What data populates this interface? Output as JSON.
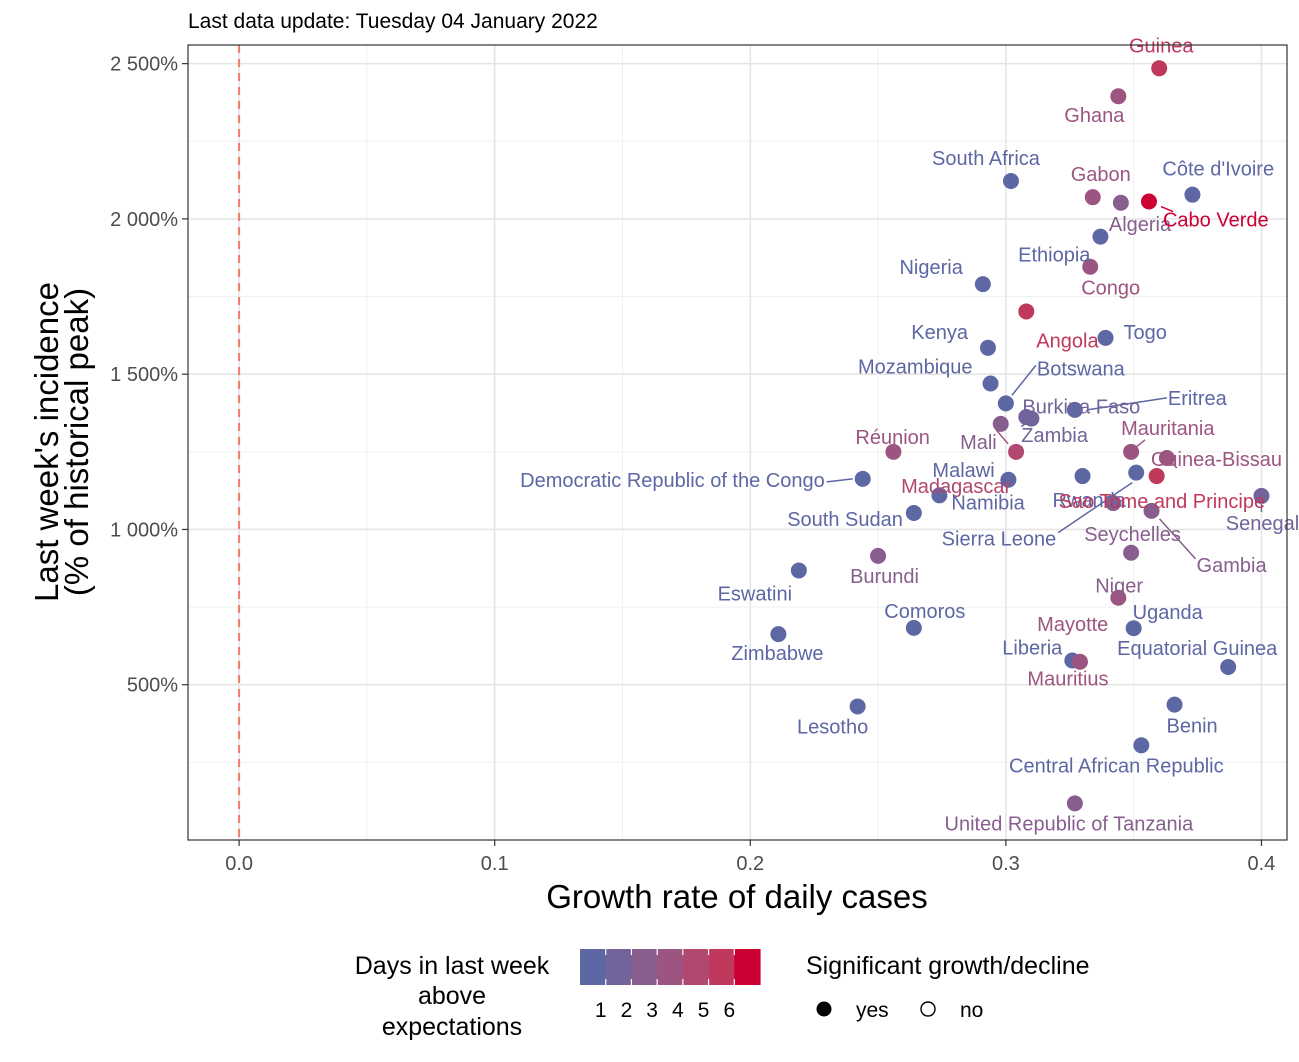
{
  "chart_data": {
    "type": "scatter",
    "subtitle": "Last data update: Tuesday 04 January 2022",
    "xlabel": "Growth rate of daily cases",
    "ylabel": [
      "Last week's incidence",
      "(% of historical peak)"
    ],
    "xlim": [
      -0.02,
      0.41
    ],
    "ylim": [
      0,
      2560
    ],
    "x_ticks": [
      {
        "value": 0.0,
        "label": "0.0"
      },
      {
        "value": 0.1,
        "label": "0.1"
      },
      {
        "value": 0.2,
        "label": "0.2"
      },
      {
        "value": 0.3,
        "label": "0.3"
      },
      {
        "value": 0.4,
        "label": "0.4"
      }
    ],
    "y_ticks": [
      {
        "value": 500,
        "label": "500%"
      },
      {
        "value": 1000,
        "label": "1 000%"
      },
      {
        "value": 1500,
        "label": "1 500%"
      },
      {
        "value": 2000,
        "label": "2 000%"
      },
      {
        "value": 2500,
        "label": "2 500%"
      }
    ],
    "reference_line": {
      "x": 0,
      "color": "#F8766D",
      "style": "dashed"
    },
    "grid": true,
    "color_scale": {
      "title": [
        "Days in last week",
        "above",
        "expectations"
      ],
      "colors": [
        "#5D67A3",
        "#72649A",
        "#875E8E",
        "#9C5580",
        "#B04870",
        "#C0385C",
        "#CC0033"
      ],
      "tick_labels": [
        "1",
        "2",
        "3",
        "4",
        "5",
        "6"
      ]
    },
    "shape_legend": {
      "title": "Significant growth/decline",
      "items": [
        {
          "label": "yes",
          "filled": true
        },
        {
          "label": "no",
          "filled": false
        }
      ]
    },
    "points": [
      {
        "name": "Guinea",
        "x": 0.36,
        "y": 2485,
        "days": 5
      },
      {
        "name": "Ghana",
        "x": 0.344,
        "y": 2395,
        "days": 3
      },
      {
        "name": "South Africa",
        "x": 0.302,
        "y": 2122,
        "days": 0
      },
      {
        "name": "Gabon",
        "x": 0.334,
        "y": 2070,
        "days": 3
      },
      {
        "name": "Côte d'Ivoire",
        "x": 0.373,
        "y": 2078,
        "days": 0
      },
      {
        "name": "Algeria",
        "x": 0.345,
        "y": 2052,
        "days": 2
      },
      {
        "name": "Cabo Verde",
        "x": 0.356,
        "y": 2056,
        "days": 6
      },
      {
        "name": "Ethiopia",
        "x": 0.337,
        "y": 1943,
        "days": 0
      },
      {
        "name": "Congo",
        "x": 0.333,
        "y": 1846,
        "days": 3
      },
      {
        "name": "Nigeria",
        "x": 0.291,
        "y": 1790,
        "days": 0
      },
      {
        "name": "Angola",
        "x": 0.308,
        "y": 1702,
        "days": 5
      },
      {
        "name": "Togo",
        "x": 0.339,
        "y": 1617,
        "days": 0
      },
      {
        "name": "Kenya",
        "x": 0.293,
        "y": 1585,
        "days": 0
      },
      {
        "name": "Mozambique",
        "x": 0.294,
        "y": 1470,
        "days": 0
      },
      {
        "name": "Botswana",
        "x": 0.3,
        "y": 1406,
        "days": 0
      },
      {
        "name": "Burkina Faso",
        "x": 0.31,
        "y": 1357,
        "days": 1
      },
      {
        "name": "Eritrea",
        "x": 0.327,
        "y": 1385,
        "days": 0
      },
      {
        "name": "Mali",
        "x": 0.298,
        "y": 1340,
        "days": 2
      },
      {
        "name": "Zambia",
        "x": 0.308,
        "y": 1362,
        "days": 1
      },
      {
        "name": "Réunion",
        "x": 0.256,
        "y": 1250,
        "days": 3
      },
      {
        "name": "Madagascar",
        "x": 0.304,
        "y": 1250,
        "days": 4
      },
      {
        "name": "Mauritania",
        "x": 0.349,
        "y": 1250,
        "days": 3
      },
      {
        "name": "Guinea-Bissau",
        "x": 0.363,
        "y": 1230,
        "days": 3
      },
      {
        "name": "Malawi",
        "x": 0.301,
        "y": 1160,
        "days": 0
      },
      {
        "name": "Democratic Republic of the Congo",
        "x": 0.244,
        "y": 1163,
        "days": 0
      },
      {
        "name": "Namibia",
        "x": 0.274,
        "y": 1110,
        "days": 0
      },
      {
        "name": "Rwanda",
        "x": 0.33,
        "y": 1172,
        "days": 0
      },
      {
        "name": "Sao Tome and Principe",
        "x": 0.359,
        "y": 1172,
        "days": 5
      },
      {
        "name": "Sierra Leone",
        "x": 0.351,
        "y": 1183,
        "days": 0
      },
      {
        "name": "Senegal",
        "x": 0.4,
        "y": 1108,
        "days": 1
      },
      {
        "name": "Seychelles",
        "x": 0.342,
        "y": 1085,
        "days": 2
      },
      {
        "name": "Gambia",
        "x": 0.357,
        "y": 1060,
        "days": 2
      },
      {
        "name": "South Sudan",
        "x": 0.264,
        "y": 1053,
        "days": 0
      },
      {
        "name": "Niger",
        "x": 0.349,
        "y": 925,
        "days": 2
      },
      {
        "name": "Burundi",
        "x": 0.25,
        "y": 915,
        "days": 2
      },
      {
        "name": "Eswatini",
        "x": 0.219,
        "y": 868,
        "days": 0
      },
      {
        "name": "Mayotte",
        "x": 0.344,
        "y": 780,
        "days": 3
      },
      {
        "name": "Comoros",
        "x": 0.264,
        "y": 683,
        "days": 0
      },
      {
        "name": "Uganda",
        "x": 0.35,
        "y": 682,
        "days": 0
      },
      {
        "name": "Zimbabwe",
        "x": 0.211,
        "y": 663,
        "days": 0
      },
      {
        "name": "Liberia",
        "x": 0.326,
        "y": 578,
        "days": 0
      },
      {
        "name": "Mauritius",
        "x": 0.329,
        "y": 574,
        "days": 3
      },
      {
        "name": "Equatorial Guinea",
        "x": 0.387,
        "y": 557,
        "days": 0
      },
      {
        "name": "Lesotho",
        "x": 0.242,
        "y": 430,
        "days": 0
      },
      {
        "name": "Benin",
        "x": 0.366,
        "y": 436,
        "days": 0
      },
      {
        "name": "Central African Republic",
        "x": 0.353,
        "y": 305,
        "days": 0
      },
      {
        "name": "United Republic of Tanzania",
        "x": 0.327,
        "y": 118,
        "days": 2
      }
    ]
  }
}
